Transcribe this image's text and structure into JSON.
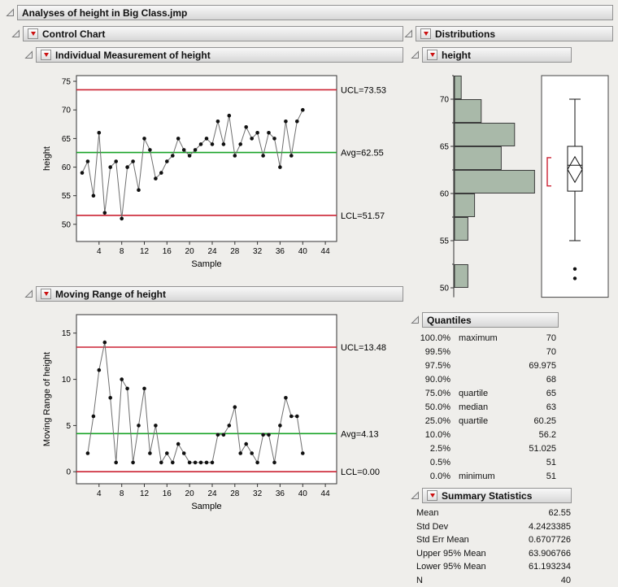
{
  "window": {
    "title": "Analyses of height in Big Class.jmp"
  },
  "control_chart": {
    "title": "Control Chart",
    "individual": {
      "title": "Individual Measurement of height"
    },
    "moving_range": {
      "title": "Moving Range of height"
    }
  },
  "distributions": {
    "title": "Distributions",
    "height": {
      "title": "height"
    },
    "quantiles": {
      "title": "Quantiles",
      "rows": [
        {
          "pct": "100.0%",
          "label": "maximum",
          "value": "70"
        },
        {
          "pct": "99.5%",
          "label": "",
          "value": "70"
        },
        {
          "pct": "97.5%",
          "label": "",
          "value": "69.975"
        },
        {
          "pct": "90.0%",
          "label": "",
          "value": "68"
        },
        {
          "pct": "75.0%",
          "label": "quartile",
          "value": "65"
        },
        {
          "pct": "50.0%",
          "label": "median",
          "value": "63"
        },
        {
          "pct": "25.0%",
          "label": "quartile",
          "value": "60.25"
        },
        {
          "pct": "10.0%",
          "label": "",
          "value": "56.2"
        },
        {
          "pct": "2.5%",
          "label": "",
          "value": "51.025"
        },
        {
          "pct": "0.5%",
          "label": "",
          "value": "51"
        },
        {
          "pct": "0.0%",
          "label": "minimum",
          "value": "51"
        }
      ]
    },
    "summary_statistics": {
      "title": "Summary Statistics",
      "rows": [
        {
          "label": "Mean",
          "value": "62.55"
        },
        {
          "label": "Std Dev",
          "value": "4.2423385"
        },
        {
          "label": "Std Err Mean",
          "value": "0.6707726"
        },
        {
          "label": "Upper 95% Mean",
          "value": "63.906766"
        },
        {
          "label": "Lower 95% Mean",
          "value": "61.193234"
        },
        {
          "label": "N",
          "value": "40"
        }
      ]
    }
  },
  "colors": {
    "limit_line": "#cc2233",
    "center_line": "#18a327",
    "histogram_fill": "#a9b9a9",
    "red_triangle": "#cc1111",
    "bracket": "#cc2233"
  },
  "chart_data": [
    {
      "id": "individual",
      "type": "line",
      "title": "Individual Measurement of height",
      "xlabel": "Sample",
      "ylabel": "height",
      "x": [
        1,
        2,
        3,
        4,
        5,
        6,
        7,
        8,
        9,
        10,
        11,
        12,
        13,
        14,
        15,
        16,
        17,
        18,
        19,
        20,
        21,
        22,
        23,
        24,
        25,
        26,
        27,
        28,
        29,
        30,
        31,
        32,
        33,
        34,
        35,
        36,
        37,
        38,
        39,
        40
      ],
      "values": [
        59,
        61,
        55,
        66,
        52,
        60,
        61,
        51,
        60,
        61,
        56,
        65,
        63,
        58,
        59,
        61,
        62,
        65,
        63,
        62,
        63,
        64,
        65,
        64,
        68,
        64,
        69,
        62,
        64,
        67,
        65,
        66,
        62,
        66,
        65,
        60,
        68,
        62,
        68,
        70
      ],
      "ucl": 73.53,
      "avg": 62.55,
      "lcl": 51.57,
      "ucl_label": "UCL=73.53",
      "avg_label": "Avg=62.55",
      "lcl_label": "LCL=51.57",
      "ylim": [
        47,
        76
      ],
      "yticks": [
        50,
        55,
        60,
        65,
        70,
        75
      ],
      "xlim": [
        0,
        46
      ],
      "xticks": [
        4,
        8,
        12,
        16,
        20,
        24,
        28,
        32,
        36,
        40,
        44
      ]
    },
    {
      "id": "moving_range",
      "type": "line",
      "title": "Moving Range of height",
      "xlabel": "Sample",
      "ylabel": "Moving Range of height",
      "x": [
        2,
        3,
        4,
        5,
        6,
        7,
        8,
        9,
        10,
        11,
        12,
        13,
        14,
        15,
        16,
        17,
        18,
        19,
        20,
        21,
        22,
        23,
        24,
        25,
        26,
        27,
        28,
        29,
        30,
        31,
        32,
        33,
        34,
        35,
        36,
        37,
        38,
        39,
        40
      ],
      "values": [
        2,
        6,
        11,
        14,
        8,
        1,
        10,
        9,
        1,
        5,
        9,
        2,
        5,
        1,
        2,
        1,
        3,
        2,
        1,
        1,
        1,
        1,
        1,
        4,
        4,
        5,
        7,
        2,
        3,
        2,
        1,
        4,
        4,
        1,
        5,
        8,
        6,
        6,
        2
      ],
      "ucl": 13.48,
      "avg": 4.13,
      "lcl": 0,
      "ucl_label": "UCL=13.48",
      "avg_label": "Avg=4.13",
      "lcl_label": "LCL=0.00",
      "ylim": [
        -1.3,
        17
      ],
      "yticks": [
        0,
        5,
        10,
        15
      ],
      "xlim": [
        0,
        46
      ],
      "xticks": [
        4,
        8,
        12,
        16,
        20,
        24,
        28,
        32,
        36,
        40,
        44
      ]
    },
    {
      "id": "height_distribution",
      "type": "bar",
      "orientation": "horizontal",
      "title": "height",
      "bin_start": 50,
      "bin_width": 2.5,
      "counts": [
        2,
        0,
        2,
        3,
        12,
        7,
        9,
        4,
        1
      ],
      "axis_ticks": [
        50,
        55,
        60,
        65,
        70
      ],
      "axis_minor_ticks": [
        52.5,
        57.5,
        62.5,
        67.5,
        72.5
      ],
      "boxplot": {
        "whisker_low": 55,
        "q1": 60.25,
        "median": 63,
        "q3": 65,
        "whisker_high": 70,
        "mean": 62.55,
        "mean_ci_low": 61.193234,
        "mean_ci_high": 63.906766,
        "outliers": [
          51,
          52
        ],
        "shortest_half": [
          60.8,
          63.8
        ]
      }
    }
  ]
}
